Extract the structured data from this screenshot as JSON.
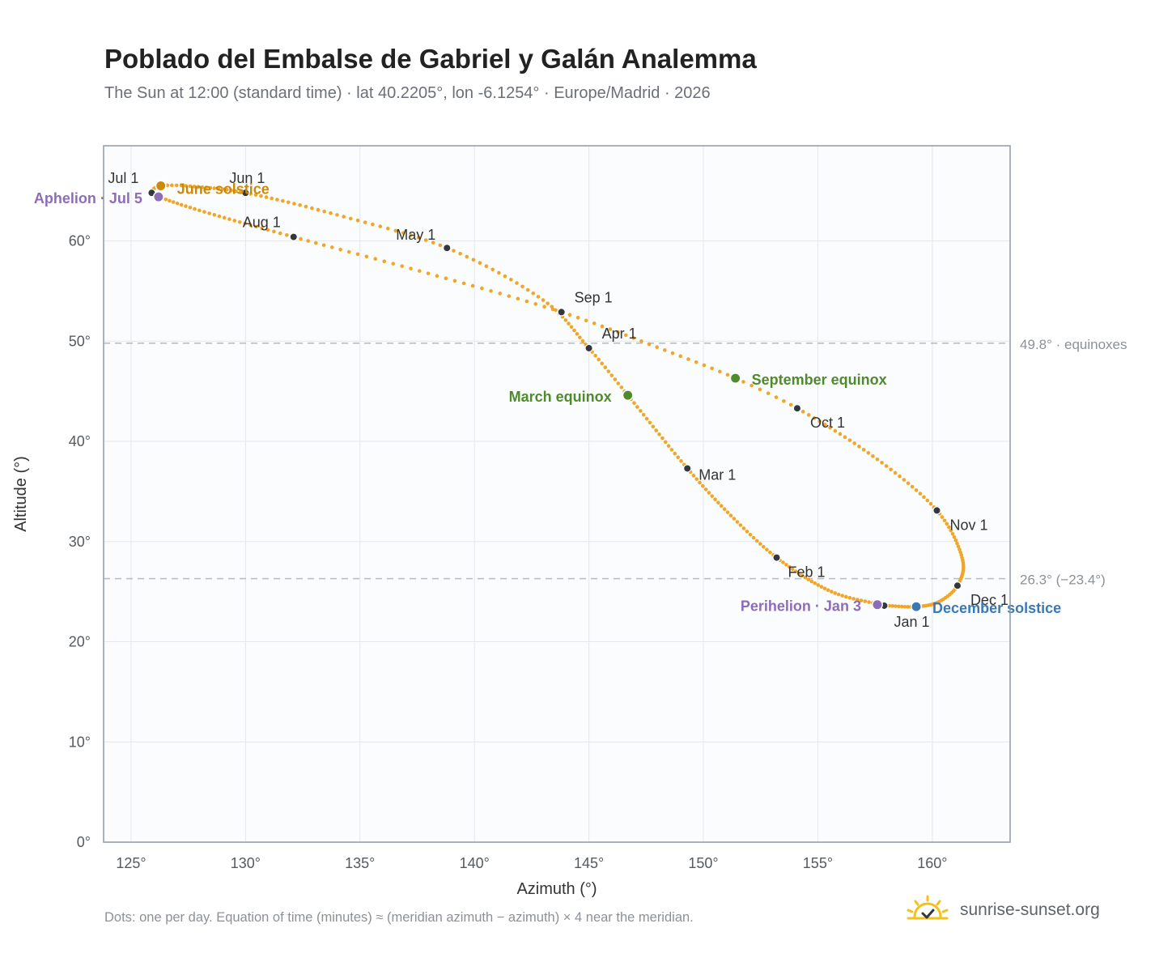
{
  "header": {
    "title": "Poblado del Embalse de Gabriel y Galán Analemma",
    "subtitle": "The Sun at 12:00 (standard time) · lat 40.2205°, lon -6.1254° · Europe/Madrid · 2026"
  },
  "footer": {
    "note": "Dots: one per day. Equation of time (minutes) ≈ (meridian azimuth − azimuth) × 4 near the meridian.",
    "brand": "sunrise-sunset.org"
  },
  "colors": {
    "path": "#f2a627",
    "month_dot": "#333840",
    "equinox": "#4f8a2b",
    "june_solstice": "#c98a0c",
    "december_solstice": "#3b78b6",
    "apsis": "#8e6cb8",
    "reference": "#b6bec6",
    "brand_sun": "#f2c21b"
  },
  "chart_data": {
    "type": "scatter",
    "xlabel": "Azimuth (°)",
    "ylabel": "Altitude (°)",
    "xlim": [
      123.8,
      163.4
    ],
    "ylim": [
      0,
      69.5
    ],
    "x_ticks": [
      {
        "value": 125,
        "label": "125°"
      },
      {
        "value": 130,
        "label": "130°"
      },
      {
        "value": 135,
        "label": "135°"
      },
      {
        "value": 140,
        "label": "140°"
      },
      {
        "value": 145,
        "label": "145°"
      },
      {
        "value": 150,
        "label": "150°"
      },
      {
        "value": 155,
        "label": "155°"
      },
      {
        "value": 160,
        "label": "160°"
      }
    ],
    "y_ticks": [
      {
        "value": 0,
        "label": "0°"
      },
      {
        "value": 10,
        "label": "10°"
      },
      {
        "value": 20,
        "label": "20°"
      },
      {
        "value": 30,
        "label": "30°"
      },
      {
        "value": 40,
        "label": "40°"
      },
      {
        "value": 50,
        "label": "50°"
      },
      {
        "value": 60,
        "label": "60°"
      }
    ],
    "grid": true,
    "reference_lines": [
      {
        "y": 49.8,
        "label": "49.8° · equinoxes"
      },
      {
        "y": 26.3,
        "label": "26.3° (−23.4°)"
      }
    ],
    "path": [
      {
        "day": 1,
        "x": 157.9,
        "y": 23.6
      },
      {
        "day": 15,
        "x": 155.6,
        "y": 25.0
      },
      {
        "day": 32,
        "x": 153.2,
        "y": 28.4
      },
      {
        "day": 46,
        "x": 151.2,
        "y": 32.6
      },
      {
        "day": 60,
        "x": 149.3,
        "y": 37.3
      },
      {
        "day": 79,
        "x": 146.7,
        "y": 44.6
      },
      {
        "day": 91,
        "x": 145.0,
        "y": 49.3
      },
      {
        "day": 105,
        "x": 143.0,
        "y": 54.1
      },
      {
        "day": 121,
        "x": 138.8,
        "y": 59.3
      },
      {
        "day": 136,
        "x": 134.0,
        "y": 62.6
      },
      {
        "day": 152,
        "x": 130.0,
        "y": 64.8
      },
      {
        "day": 166,
        "x": 127.4,
        "y": 65.5
      },
      {
        "day": 172,
        "x": 126.3,
        "y": 65.5
      },
      {
        "day": 182,
        "x": 125.9,
        "y": 64.8
      },
      {
        "day": 186,
        "x": 126.2,
        "y": 64.4
      },
      {
        "day": 197,
        "x": 128.2,
        "y": 62.9
      },
      {
        "day": 213,
        "x": 132.1,
        "y": 60.4
      },
      {
        "day": 228,
        "x": 137.6,
        "y": 57.0
      },
      {
        "day": 244,
        "x": 143.8,
        "y": 52.9
      },
      {
        "day": 259,
        "x": 149.0,
        "y": 48.5
      },
      {
        "day": 266,
        "x": 151.4,
        "y": 46.3
      },
      {
        "day": 274,
        "x": 154.1,
        "y": 43.3
      },
      {
        "day": 290,
        "x": 157.6,
        "y": 38.2
      },
      {
        "day": 305,
        "x": 160.2,
        "y": 33.1
      },
      {
        "day": 320,
        "x": 161.3,
        "y": 28.4
      },
      {
        "day": 335,
        "x": 161.1,
        "y": 25.6
      },
      {
        "day": 345,
        "x": 160.3,
        "y": 24.0
      },
      {
        "day": 355,
        "x": 159.3,
        "y": 23.5
      },
      {
        "day": 365,
        "x": 158.0,
        "y": 23.6
      }
    ],
    "month_markers": [
      {
        "label": "Jan 1",
        "x": 157.9,
        "y": 23.6
      },
      {
        "label": "Feb 1",
        "x": 153.2,
        "y": 28.4
      },
      {
        "label": "Mar 1",
        "x": 149.3,
        "y": 37.3
      },
      {
        "label": "Apr 1",
        "x": 145.0,
        "y": 49.3
      },
      {
        "label": "May 1",
        "x": 138.8,
        "y": 59.3
      },
      {
        "label": "Jun 1",
        "x": 130.0,
        "y": 64.8
      },
      {
        "label": "Jul 1",
        "x": 125.9,
        "y": 64.8
      },
      {
        "label": "Aug 1",
        "x": 132.1,
        "y": 60.4
      },
      {
        "label": "Sep 1",
        "x": 143.8,
        "y": 52.9
      },
      {
        "label": "Oct 1",
        "x": 154.1,
        "y": 43.3
      },
      {
        "label": "Nov 1",
        "x": 160.2,
        "y": 33.1
      },
      {
        "label": "Dec 1",
        "x": 161.1,
        "y": 25.6
      }
    ],
    "events": [
      {
        "label": "March equinox",
        "x": 146.7,
        "y": 44.6,
        "kind": "equinox"
      },
      {
        "label": "September equinox",
        "x": 151.4,
        "y": 46.3,
        "kind": "equinox"
      },
      {
        "label": "June solstice",
        "x": 126.3,
        "y": 65.5,
        "kind": "june_solstice"
      },
      {
        "label": "December solstice",
        "x": 159.3,
        "y": 23.5,
        "kind": "december_solstice"
      },
      {
        "label": "Aphelion · Jul 5",
        "x": 126.2,
        "y": 64.4,
        "kind": "apsis"
      },
      {
        "label": "Perihelion · Jan 3",
        "x": 157.6,
        "y": 23.7,
        "kind": "apsis"
      }
    ]
  }
}
